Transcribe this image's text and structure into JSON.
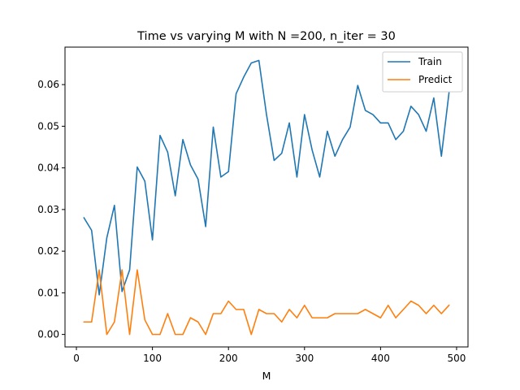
{
  "chart_data": {
    "type": "line",
    "title": "Time vs varying M with N =200, n_iter = 30",
    "xlabel": "M",
    "ylabel": "",
    "xlim": [
      -15,
      515
    ],
    "ylim": [
      -0.003,
      0.069
    ],
    "xticks": [
      0,
      100,
      200,
      300,
      400,
      500
    ],
    "xtick_labels": [
      "0",
      "100",
      "200",
      "300",
      "400",
      "500"
    ],
    "yticks": [
      0.0,
      0.01,
      0.02,
      0.03,
      0.04,
      0.05,
      0.06
    ],
    "ytick_labels": [
      "0.00",
      "0.01",
      "0.02",
      "0.03",
      "0.04",
      "0.05",
      "0.06"
    ],
    "grid": false,
    "legend_position": "top-right",
    "x": [
      10,
      20,
      30,
      40,
      50,
      60,
      70,
      80,
      90,
      100,
      110,
      120,
      130,
      140,
      150,
      160,
      170,
      180,
      190,
      200,
      210,
      220,
      230,
      240,
      250,
      260,
      270,
      280,
      290,
      300,
      310,
      320,
      330,
      340,
      350,
      360,
      370,
      380,
      390,
      400,
      410,
      420,
      430,
      440,
      450,
      460,
      470,
      480,
      490
    ],
    "series": [
      {
        "name": "Train",
        "color": "#1f77b4",
        "values": [
          0.028,
          0.025,
          0.0095,
          0.0232,
          0.031,
          0.0103,
          0.0155,
          0.0402,
          0.0368,
          0.0227,
          0.0478,
          0.0438,
          0.0333,
          0.0468,
          0.0407,
          0.0373,
          0.0259,
          0.0498,
          0.0378,
          0.0391,
          0.0578,
          0.0618,
          0.0652,
          0.0658,
          0.0528,
          0.0418,
          0.0435,
          0.0508,
          0.0378,
          0.0528,
          0.0443,
          0.0378,
          0.0488,
          0.0428,
          0.0468,
          0.0498,
          0.0598,
          0.0538,
          0.0528,
          0.0508,
          0.0508,
          0.0468,
          0.0488,
          0.0548,
          0.0528,
          0.0488,
          0.0568,
          0.0428,
          0.058
        ]
      },
      {
        "name": "Predict",
        "color": "#ff7f0e",
        "values": [
          0.003,
          0.003,
          0.0155,
          0.0,
          0.003,
          0.0155,
          0.0,
          0.0155,
          0.0035,
          0.0,
          0.0,
          0.005,
          0.0,
          0.0,
          0.004,
          0.003,
          0.0,
          0.005,
          0.005,
          0.008,
          0.006,
          0.006,
          0.0,
          0.006,
          0.005,
          0.005,
          0.003,
          0.006,
          0.004,
          0.007,
          0.004,
          0.004,
          0.004,
          0.005,
          0.005,
          0.005,
          0.005,
          0.006,
          0.005,
          0.004,
          0.007,
          0.004,
          0.006,
          0.008,
          0.007,
          0.005,
          0.007,
          0.005,
          0.007
        ]
      }
    ]
  }
}
